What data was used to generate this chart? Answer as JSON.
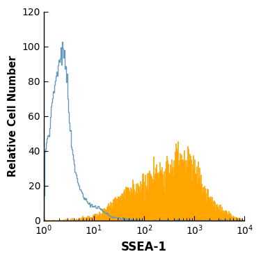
{
  "title": "",
  "xlabel": "SSEA-1",
  "ylabel": "Relative Cell Number",
  "xlim_log": [
    1,
    10000
  ],
  "ylim": [
    0,
    120
  ],
  "yticks": [
    0,
    20,
    40,
    60,
    80,
    100,
    120
  ],
  "background_color": "#ffffff",
  "blue_color": "#6699bb",
  "orange_color": "#FFA500",
  "xlabel_fontsize": 12,
  "ylabel_fontsize": 10.5,
  "tick_fontsize": 10
}
